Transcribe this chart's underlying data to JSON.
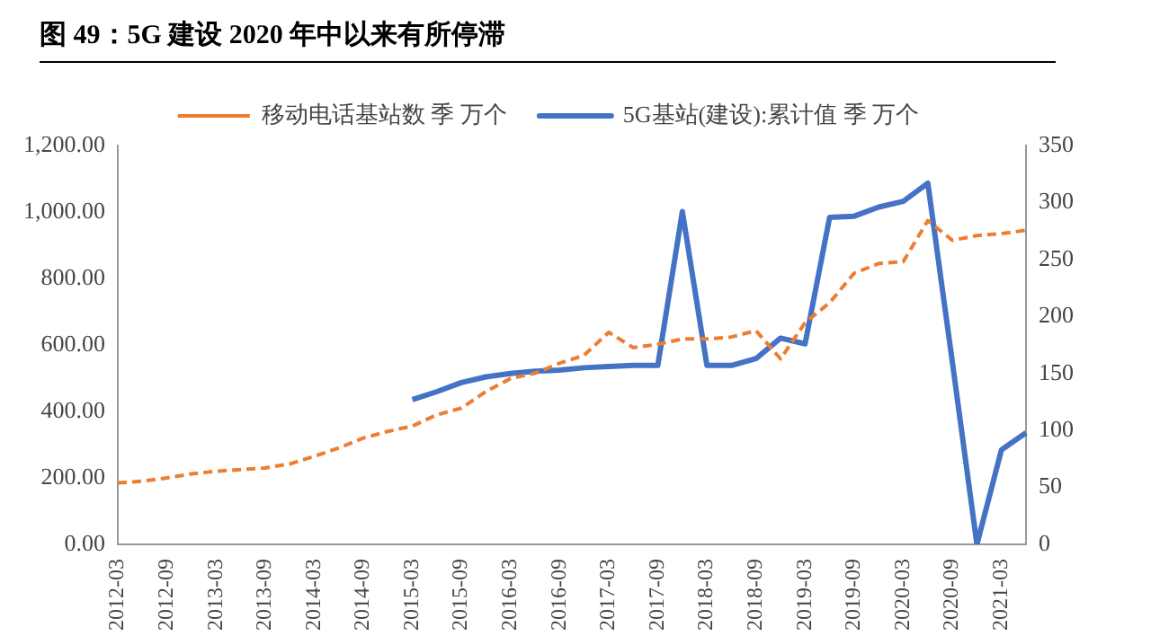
{
  "chart_data": {
    "type": "line",
    "title": "图 49：5G 建设 2020 年中以来有所停滞",
    "categories": [
      "2012-03",
      null,
      "2012-09",
      null,
      "2013-03",
      null,
      "2013-09",
      null,
      "2014-03",
      null,
      "2014-09",
      null,
      "2015-03",
      null,
      "2015-09",
      null,
      "2016-03",
      null,
      "2016-09",
      null,
      "2017-03",
      null,
      "2017-09",
      null,
      "2018-03",
      null,
      "2018-09",
      null,
      "2019-03",
      null,
      "2019-09",
      null,
      "2020-03",
      null,
      "2020-09",
      null,
      "2021-03",
      null
    ],
    "series": [
      {
        "name": "移动电话基站数 季 万个",
        "color": "#ed7d31",
        "line_style": "dashed",
        "values": [
          185,
          190,
          200,
          212,
          220,
          225,
          230,
          242,
          265,
          290,
          320,
          340,
          356,
          390,
          410,
          460,
          499,
          515,
          545,
          569,
          638,
          592,
          602,
          618,
          618,
          624,
          643,
          558,
          667,
          727,
          816,
          845,
          851,
          974,
          915,
          929,
          935,
          945
        ]
      },
      {
        "name": "5G基站(建设):累计值 季 万个",
        "color": "#4472c4",
        "line_style": "solid",
        "axis": "y2",
        "values": [
          null,
          null,
          null,
          null,
          null,
          null,
          null,
          null,
          null,
          null,
          null,
          null,
          127,
          134,
          142,
          147,
          150,
          152,
          153,
          155,
          156,
          157,
          157,
          292,
          157,
          157,
          163,
          181,
          176,
          287,
          288,
          296,
          301,
          317,
          160,
          0,
          83,
          98
        ]
      }
    ],
    "ylim": [
      0,
      1200
    ],
    "yticks": [
      {
        "value": 0,
        "label": "0.00"
      },
      {
        "value": 200,
        "label": "200.00"
      },
      {
        "value": 400,
        "label": "400.00"
      },
      {
        "value": 600,
        "label": "600.00"
      },
      {
        "value": 800,
        "label": "800.00"
      },
      {
        "value": 1000,
        "label": "1,000.00"
      },
      {
        "value": 1200,
        "label": "1,200.00"
      }
    ],
    "y2lim": [
      0,
      350
    ],
    "y2ticks": [
      0,
      50,
      100,
      150,
      200,
      250,
      300,
      350
    ],
    "grid": false,
    "legend": "top",
    "marker": "none"
  }
}
